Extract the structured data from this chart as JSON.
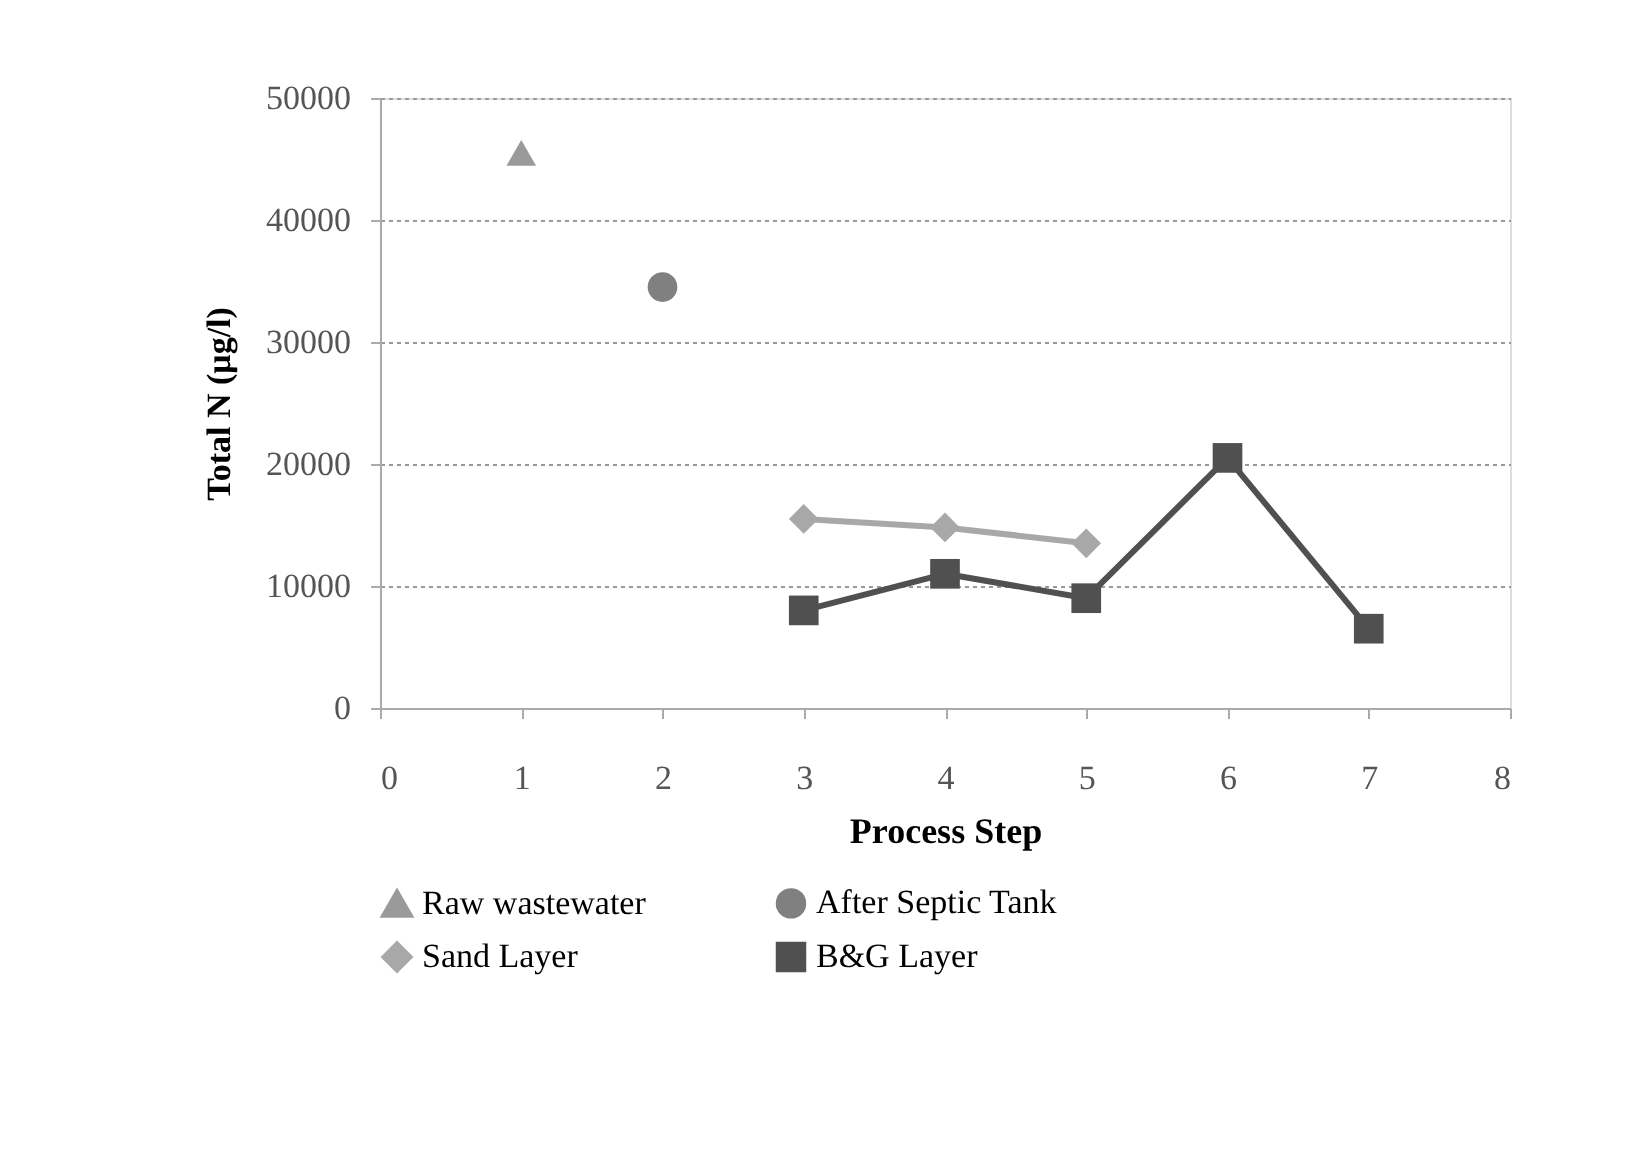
{
  "chart_data": {
    "type": "line",
    "xlabel": "Process Step",
    "ylabel": "Total N (μg/l)",
    "xlim": [
      0,
      8
    ],
    "xticks": [
      0,
      1,
      2,
      3,
      4,
      5,
      6,
      7,
      8
    ],
    "ylim": [
      0,
      50000
    ],
    "yticks": [
      0,
      10000,
      20000,
      30000,
      40000,
      50000
    ],
    "grid": "y",
    "legend": "bottom",
    "line_style": "solid",
    "series": [
      {
        "name": "Raw wastewater",
        "color": "#9a9a9a",
        "marker": "triangle",
        "x": [
          1
        ],
        "values": [
          45500
        ]
      },
      {
        "name": "After Septic Tank",
        "color": "#808080",
        "marker": "circle",
        "x": [
          2
        ],
        "values": [
          34500
        ]
      },
      {
        "name": "Sand Layer",
        "color": "#a8a8a8",
        "marker": "diamond",
        "x": [
          3,
          4,
          5
        ],
        "values": [
          15500,
          14800,
          13500
        ]
      },
      {
        "name": "B&G Layer",
        "color": "#505050",
        "marker": "square",
        "x": [
          3,
          4,
          5,
          6,
          7
        ],
        "values": [
          8000,
          11000,
          9000,
          20500,
          6500
        ]
      }
    ]
  }
}
